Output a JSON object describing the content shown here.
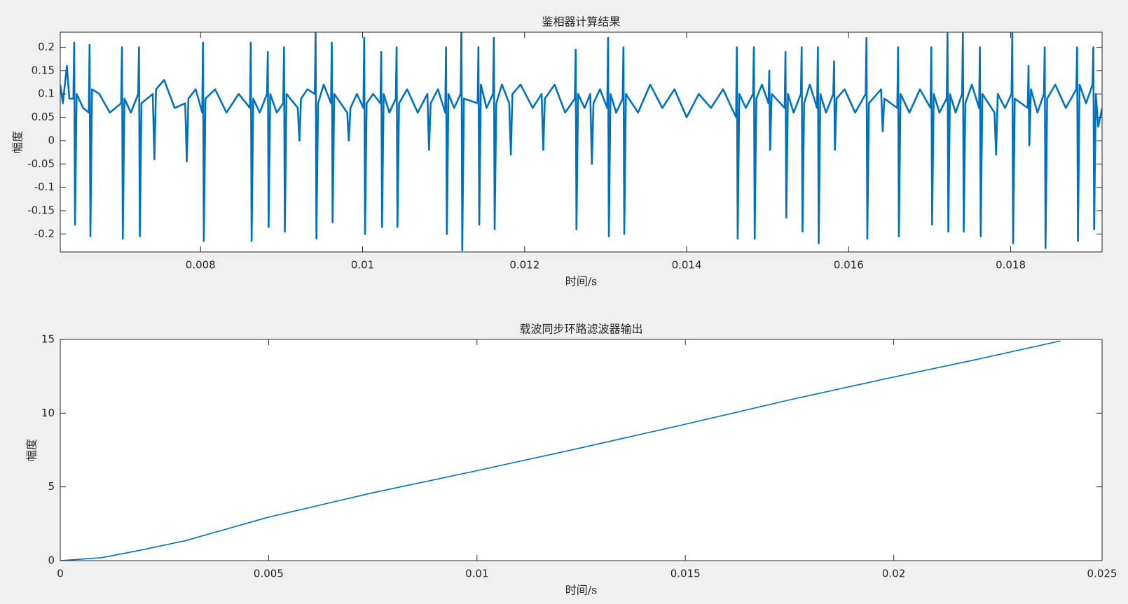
{
  "chart_data": [
    {
      "type": "line",
      "title": "鉴相器计算结果",
      "x_label": "时间/s",
      "y_label": "幅度",
      "xlim": [
        0.006268,
        0.019128
      ],
      "ylim": [
        -0.2385,
        0.2323
      ],
      "xticks": [
        0.008,
        0.01,
        0.012,
        0.014,
        0.016,
        0.018
      ],
      "yticks": [
        -0.2,
        -0.15,
        -0.1,
        -0.05,
        0,
        0.05,
        0.1,
        0.15,
        0.2
      ],
      "color": "#0072bd",
      "x": [
        0.006268,
        0.0063,
        0.00635,
        0.00638,
        0.00643,
        0.00644,
        0.00645,
        0.00647,
        0.00655,
        0.00662,
        0.00663,
        0.00664,
        0.00666,
        0.00675,
        0.00688,
        0.00702,
        0.00703,
        0.00704,
        0.00706,
        0.00714,
        0.00723,
        0.00724,
        0.00725,
        0.00727,
        0.00741,
        0.00743,
        0.00745,
        0.00755,
        0.00768,
        0.00781,
        0.00783,
        0.00785,
        0.00794,
        0.00802,
        0.00803,
        0.00804,
        0.00806,
        0.00818,
        0.00832,
        0.00847,
        0.00861,
        0.00862,
        0.00863,
        0.00865,
        0.00873,
        0.00882,
        0.00883,
        0.00884,
        0.00886,
        0.00894,
        0.00902,
        0.00903,
        0.00904,
        0.00906,
        0.0092,
        0.00922,
        0.00924,
        0.00932,
        0.00941,
        0.00942,
        0.00943,
        0.00945,
        0.00952,
        0.00961,
        0.00962,
        0.00963,
        0.00965,
        0.00981,
        0.00983,
        0.00985,
        0.00993,
        0.01001,
        0.01002,
        0.01003,
        0.01005,
        0.01013,
        0.01022,
        0.01023,
        0.01024,
        0.01026,
        0.01033,
        0.01041,
        0.01042,
        0.01043,
        0.01045,
        0.01055,
        0.01068,
        0.0108,
        0.01082,
        0.01084,
        0.01093,
        0.01102,
        0.01103,
        0.01104,
        0.01106,
        0.01113,
        0.01121,
        0.01122,
        0.01123,
        0.01125,
        0.01142,
        0.01143,
        0.01144,
        0.01146,
        0.01153,
        0.01161,
        0.01162,
        0.01163,
        0.01165,
        0.01172,
        0.01181,
        0.01183,
        0.01185,
        0.01195,
        0.0121,
        0.01221,
        0.01223,
        0.01225,
        0.01237,
        0.0125,
        0.01262,
        0.01263,
        0.01264,
        0.01266,
        0.01274,
        0.01281,
        0.01283,
        0.01285,
        0.01293,
        0.01302,
        0.01303,
        0.01304,
        0.01306,
        0.01313,
        0.01321,
        0.01322,
        0.01323,
        0.01325,
        0.0134,
        0.01355,
        0.0137,
        0.01385,
        0.014,
        0.01415,
        0.0143,
        0.01445,
        0.01461,
        0.01462,
        0.01463,
        0.01465,
        0.01473,
        0.01482,
        0.01483,
        0.01484,
        0.01486,
        0.01493,
        0.01501,
        0.01502,
        0.01503,
        0.01505,
        0.01521,
        0.01522,
        0.01523,
        0.01525,
        0.01532,
        0.01541,
        0.01542,
        0.01543,
        0.01545,
        0.01552,
        0.01561,
        0.01562,
        0.01563,
        0.01565,
        0.01572,
        0.01581,
        0.01582,
        0.01583,
        0.01585,
        0.01595,
        0.01608,
        0.01621,
        0.01622,
        0.01623,
        0.01625,
        0.0164,
        0.01642,
        0.01644,
        0.0166,
        0.01661,
        0.01662,
        0.01664,
        0.01675,
        0.01688,
        0.01701,
        0.01702,
        0.01703,
        0.01705,
        0.01712,
        0.01721,
        0.01722,
        0.01723,
        0.01725,
        0.01732,
        0.0174,
        0.01741,
        0.01742,
        0.01744,
        0.01752,
        0.01761,
        0.01762,
        0.01763,
        0.01765,
        0.0178,
        0.01782,
        0.01784,
        0.01793,
        0.01801,
        0.01802,
        0.01803,
        0.01805,
        0.01821,
        0.01822,
        0.01823,
        0.01825,
        0.01833,
        0.01841,
        0.01842,
        0.01843,
        0.01845,
        0.01855,
        0.01868,
        0.01881,
        0.01882,
        0.01883,
        0.01885,
        0.01893,
        0.01901,
        0.01902,
        0.01903,
        0.01905,
        0.01908,
        0.01913
      ],
      "values": [
        0.12,
        0.08,
        0.16,
        0.09,
        0.09,
        0.21,
        -0.18,
        0.1,
        0.07,
        0.06,
        0.205,
        -0.205,
        0.11,
        0.1,
        0.06,
        0.08,
        0.2,
        -0.21,
        0.09,
        0.06,
        0.1,
        0.2,
        -0.205,
        0.08,
        0.1,
        -0.04,
        0.11,
        0.13,
        0.07,
        0.08,
        -0.045,
        0.09,
        0.11,
        0.06,
        0.21,
        -0.215,
        0.09,
        0.11,
        0.06,
        0.1,
        0.07,
        0.21,
        -0.215,
        0.09,
        0.06,
        0.1,
        0.19,
        -0.185,
        0.1,
        0.06,
        0.08,
        0.2,
        -0.195,
        0.1,
        0.07,
        0,
        0.09,
        0.11,
        0.1,
        0.23,
        -0.21,
        0.08,
        0.12,
        0.08,
        0.21,
        -0.175,
        0.1,
        0.06,
        0,
        0.07,
        0.1,
        0.07,
        0.22,
        -0.2,
        0.08,
        0.1,
        0.08,
        0.19,
        -0.185,
        0.1,
        0.06,
        0.09,
        0.2,
        -0.185,
        0.08,
        0.11,
        0.06,
        0.1,
        -0.02,
        0.08,
        0.11,
        0.06,
        0.2,
        -0.2,
        0.1,
        0.07,
        0.1,
        0.25,
        -0.235,
        0.09,
        0.08,
        0.2,
        -0.18,
        0.12,
        0.07,
        0.1,
        0.22,
        -0.19,
        0.08,
        0.12,
        0.08,
        -0.03,
        0.1,
        0.12,
        0.07,
        0.1,
        -0.02,
        0.09,
        0.12,
        0.06,
        0.09,
        0.195,
        -0.19,
        0.1,
        0.07,
        0.1,
        -0.05,
        0.08,
        0.11,
        0.07,
        0.22,
        -0.205,
        0.1,
        0.06,
        0.09,
        0.2,
        -0.2,
        0.1,
        0.06,
        0.12,
        0.07,
        0.11,
        0.05,
        0.1,
        0.07,
        0.11,
        0.05,
        0.2,
        -0.21,
        0.1,
        0.07,
        0.1,
        0.2,
        -0.21,
        0.09,
        0.12,
        0.08,
        0.15,
        -0.02,
        0.1,
        0.07,
        0.19,
        -0.165,
        0.1,
        0.06,
        0.1,
        0.2,
        -0.195,
        0.08,
        0.12,
        0.07,
        0.2,
        -0.22,
        0.1,
        0.06,
        0.1,
        0.17,
        -0.02,
        0.09,
        0.11,
        0.06,
        0.1,
        0.22,
        -0.21,
        0.08,
        0.11,
        0.02,
        0.09,
        0.07,
        0.2,
        -0.205,
        0.1,
        0.06,
        0.11,
        0.07,
        0.2,
        -0.18,
        0.1,
        0.06,
        0.09,
        0.23,
        -0.195,
        0.1,
        0.06,
        0.1,
        0.23,
        -0.195,
        0.08,
        0.12,
        0.07,
        0.2,
        -0.205,
        0.1,
        0.06,
        -0.03,
        0.1,
        0.07,
        0.1,
        0.23,
        -0.22,
        0.09,
        0.07,
        0.16,
        -0.01,
        0.11,
        0.06,
        0.1,
        0.2,
        -0.23,
        0.09,
        0.12,
        0.07,
        0.11,
        0.2,
        -0.215,
        0.12,
        0.08,
        0.12,
        0.2,
        -0.19,
        0.1,
        0.03,
        0.07
      ]
    },
    {
      "type": "line",
      "title": "载波同步环路滤波器输出",
      "x_label": "时间/s",
      "y_label": "幅度",
      "xlim": [
        0,
        0.025
      ],
      "ylim": [
        0,
        15
      ],
      "xticks": [
        0,
        0.005,
        0.01,
        0.015,
        0.02,
        0.025
      ],
      "yticks": [
        0,
        5,
        10,
        15
      ],
      "color": "#0072bd",
      "x": [
        0,
        0.001,
        0.002,
        0.003,
        0.005,
        0.0075,
        0.01,
        0.0125,
        0.015,
        0.0175,
        0.02,
        0.022,
        0.024
      ],
      "values": [
        0,
        0.2,
        0.75,
        1.35,
        2.95,
        4.6,
        6.1,
        7.65,
        9.25,
        10.9,
        12.45,
        13.65,
        14.9
      ]
    }
  ]
}
